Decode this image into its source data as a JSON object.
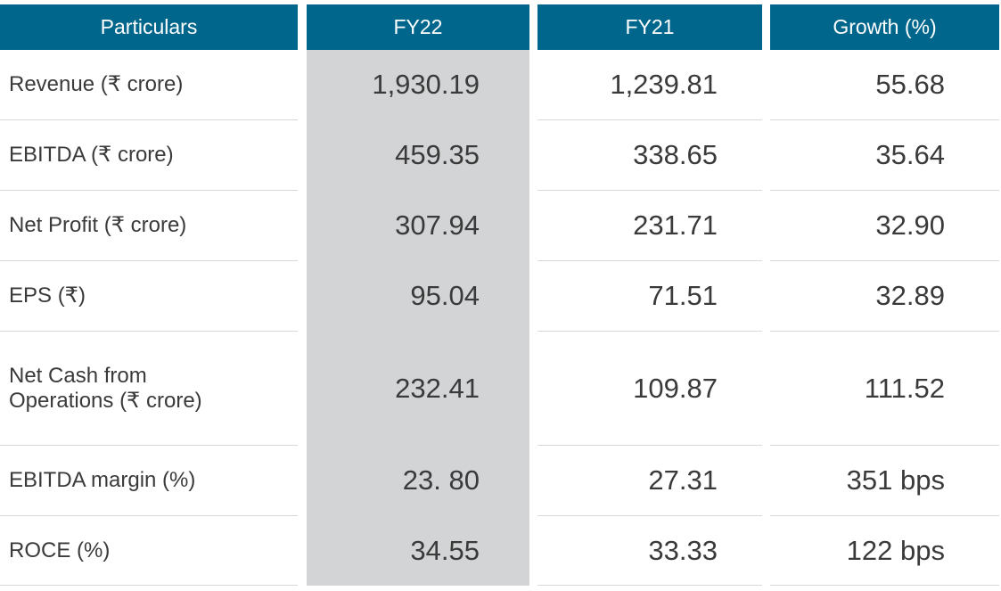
{
  "table": {
    "header": [
      "Particulars",
      "FY22",
      "FY21",
      "Growth (%)"
    ],
    "rows": [
      [
        "Revenue (₹ crore)",
        "1,930.19",
        "1,239.81",
        "55.68"
      ],
      [
        "EBITDA (₹ crore)",
        "459.35",
        "338.65",
        "35.64"
      ],
      [
        "Net Profit (₹ crore)",
        "307.94",
        "231.71",
        "32.90"
      ],
      [
        "EPS (₹)",
        "95.04",
        "71.51",
        "32.89"
      ],
      [
        "Net Cash from\nOperations (₹ crore)",
        "232.41",
        "109.87",
        "111.52"
      ],
      [
        "EBITDA margin (%)",
        "23. 80",
        "27.31",
        "351 bps"
      ],
      [
        "ROCE (%)",
        "34.55",
        "33.33",
        "122 bps"
      ]
    ]
  }
}
